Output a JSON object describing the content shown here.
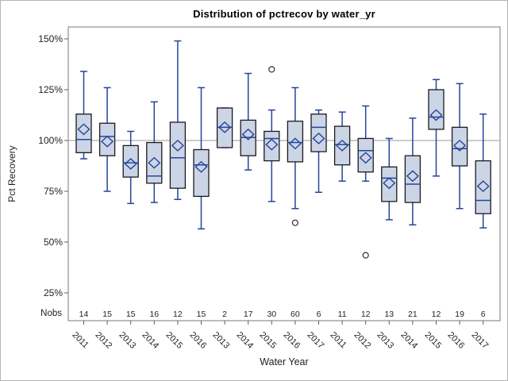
{
  "title": "Distribution of pctrecov by water_yr",
  "y_axis": {
    "label": "Pct Recovery",
    "ticks": [
      "25%",
      "50%",
      "75%",
      "100%",
      "125%",
      "150%"
    ],
    "tick_values": [
      25,
      50,
      75,
      100,
      125,
      150
    ]
  },
  "x_axis": {
    "label": "Water Year"
  },
  "nobs_label": "Nobs",
  "colors": {
    "box_fill": "#ccd5e6",
    "box_border": "#1a1a1a",
    "line_blue": "#24459a",
    "outlier": "#2f2f2f",
    "frame": "#8f8f8f",
    "reference_line": "#adadad",
    "tick": "#5f5f5f",
    "text": "#1f1f1f"
  },
  "chart_data": {
    "type": "boxplot",
    "title": "Distribution of pctrecov by water_yr",
    "xlabel": "Water Year",
    "ylabel": "Pct Recovery",
    "ylim": [
      11,
      156
    ],
    "yticks_pct": [
      25,
      50,
      75,
      100,
      125,
      150
    ],
    "reference_line_pct": 100,
    "grid": false,
    "legend": "none",
    "categories": [
      "2011",
      "2012",
      "2013",
      "2014",
      "2015",
      "2016",
      "2013",
      "2014",
      "2015",
      "2016",
      "2017",
      "2011",
      "2012",
      "2013",
      "2014",
      "2015",
      "2016",
      "2017"
    ],
    "nobs": [
      14,
      15,
      15,
      16,
      12,
      15,
      2,
      17,
      30,
      60,
      6,
      11,
      12,
      13,
      21,
      12,
      19,
      6
    ],
    "series": [
      {
        "year": "2011",
        "nobs": 14,
        "whisker_low": 91,
        "q1": 94,
        "median": 100.5,
        "q3": 113,
        "whisker_high": 134,
        "mean": 105.5,
        "outliers": []
      },
      {
        "year": "2012",
        "nobs": 15,
        "whisker_low": 75,
        "q1": 92.5,
        "median": 102,
        "q3": 108.5,
        "whisker_high": 126,
        "mean": 99.5,
        "outliers": []
      },
      {
        "year": "2013",
        "nobs": 15,
        "whisker_low": 69,
        "q1": 82,
        "median": 89,
        "q3": 97.5,
        "whisker_high": 104.5,
        "mean": 88.5,
        "outliers": []
      },
      {
        "year": "2014",
        "nobs": 16,
        "whisker_low": 69.5,
        "q1": 79,
        "median": 82.5,
        "q3": 99,
        "whisker_high": 119,
        "mean": 89,
        "outliers": []
      },
      {
        "year": "2015",
        "nobs": 12,
        "whisker_low": 71,
        "q1": 76.5,
        "median": 91.5,
        "q3": 109,
        "whisker_high": 149,
        "mean": 97.5,
        "outliers": []
      },
      {
        "year": "2016",
        "nobs": 15,
        "whisker_low": 56.5,
        "q1": 72.5,
        "median": 88,
        "q3": 95.5,
        "whisker_high": 126,
        "mean": 87,
        "outliers": []
      },
      {
        "year": "2013",
        "nobs": 2,
        "whisker_low": 96.5,
        "q1": 96.5,
        "median": 106.5,
        "q3": 116,
        "whisker_high": 116,
        "mean": 106.5,
        "outliers": []
      },
      {
        "year": "2014",
        "nobs": 17,
        "whisker_low": 85.5,
        "q1": 92.5,
        "median": 101.5,
        "q3": 110,
        "whisker_high": 133,
        "mean": 103,
        "outliers": []
      },
      {
        "year": "2015",
        "nobs": 30,
        "whisker_low": 70,
        "q1": 90,
        "median": 101,
        "q3": 104.5,
        "whisker_high": 115,
        "mean": 98,
        "outliers": [
          135
        ]
      },
      {
        "year": "2016",
        "nobs": 60,
        "whisker_low": 66.5,
        "q1": 89.5,
        "median": 99,
        "q3": 109.5,
        "whisker_high": 126,
        "mean": 98.5,
        "outliers": [
          59.5
        ]
      },
      {
        "year": "2017",
        "nobs": 6,
        "whisker_low": 74.5,
        "q1": 94.5,
        "median": 106.5,
        "q3": 113,
        "whisker_high": 115,
        "mean": 101,
        "outliers": []
      },
      {
        "year": "2011",
        "nobs": 11,
        "whisker_low": 80,
        "q1": 88,
        "median": 98,
        "q3": 107,
        "whisker_high": 114,
        "mean": 97.5,
        "outliers": []
      },
      {
        "year": "2012",
        "nobs": 12,
        "whisker_low": 80,
        "q1": 84.5,
        "median": 95,
        "q3": 101,
        "whisker_high": 117,
        "mean": 91.5,
        "outliers": [
          43.5
        ]
      },
      {
        "year": "2013",
        "nobs": 13,
        "whisker_low": 61,
        "q1": 70,
        "median": 81.5,
        "q3": 87,
        "whisker_high": 101,
        "mean": 79,
        "outliers": []
      },
      {
        "year": "2014",
        "nobs": 21,
        "whisker_low": 58.5,
        "q1": 69.5,
        "median": 78.5,
        "q3": 92.5,
        "whisker_high": 111,
        "mean": 82.5,
        "outliers": []
      },
      {
        "year": "2015",
        "nobs": 12,
        "whisker_low": 82.5,
        "q1": 105.5,
        "median": 111.5,
        "q3": 125,
        "whisker_high": 130,
        "mean": 112.5,
        "outliers": []
      },
      {
        "year": "2016",
        "nobs": 19,
        "whisker_low": 66.5,
        "q1": 87.5,
        "median": 96,
        "q3": 106.5,
        "whisker_high": 128,
        "mean": 97.5,
        "outliers": []
      },
      {
        "year": "2017",
        "nobs": 6,
        "whisker_low": 57,
        "q1": 64,
        "median": 70.5,
        "q3": 90,
        "whisker_high": 113,
        "mean": 77.5,
        "outliers": []
      }
    ]
  }
}
